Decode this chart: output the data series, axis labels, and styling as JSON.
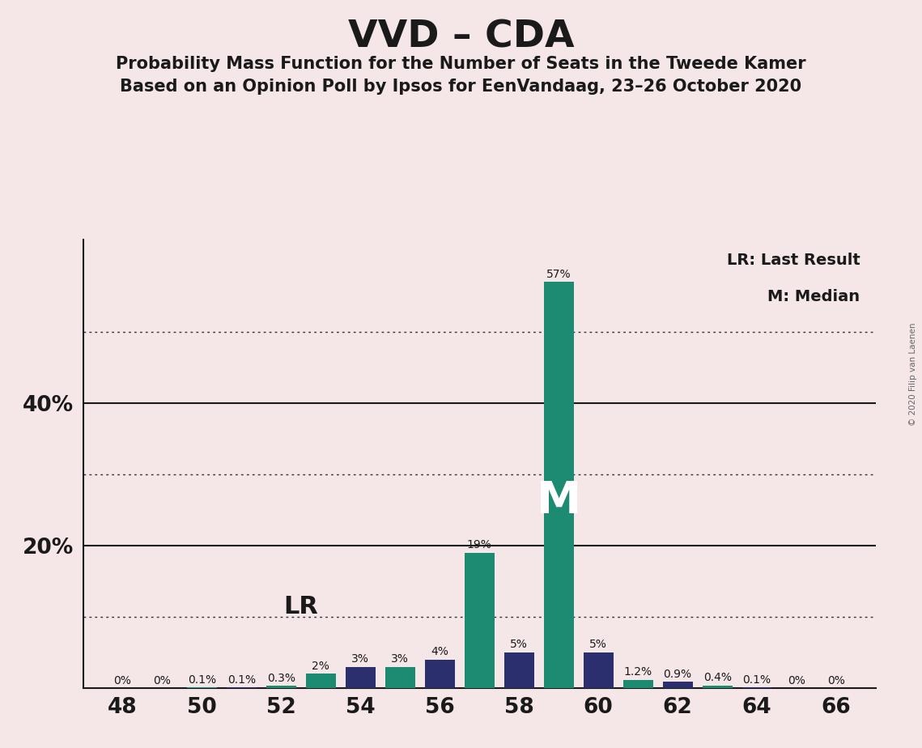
{
  "title": "VVD – CDA",
  "subtitle1": "Probability Mass Function for the Number of Seats in the Tweede Kamer",
  "subtitle2": "Based on an Opinion Poll by Ipsos for EenVandaag, 23–26 October 2020",
  "background_color": "#f5e6e8",
  "seats": [
    48,
    49,
    50,
    51,
    52,
    53,
    54,
    55,
    56,
    57,
    58,
    59,
    60,
    61,
    62,
    63,
    64,
    65,
    66
  ],
  "probabilities": [
    0.0,
    0.0,
    0.001,
    0.001,
    0.003,
    0.02,
    0.03,
    0.03,
    0.04,
    0.19,
    0.05,
    0.57,
    0.05,
    0.012,
    0.009,
    0.004,
    0.001,
    0.0,
    0.0
  ],
  "labels": [
    "0%",
    "0%",
    "0.1%",
    "0.1%",
    "0.3%",
    "2%",
    "3%",
    "3%",
    "4%",
    "19%",
    "5%",
    "57%",
    "5%",
    "1.2%",
    "0.9%",
    "0.4%",
    "0.1%",
    "0%",
    "0%"
  ],
  "colors": [
    "#1d8a72",
    "#2b2f6e",
    "#1d8a72",
    "#2b2f6e",
    "#1d8a72",
    "#1d8a72",
    "#2b2f6e",
    "#1d8a72",
    "#2b2f6e",
    "#1d8a72",
    "#2b2f6e",
    "#1d8a72",
    "#2b2f6e",
    "#1d8a72",
    "#2b2f6e",
    "#1d8a72",
    "#2b2f6e",
    "#1d8a72",
    "#2b2f6e"
  ],
  "lr_seat": 53,
  "median_seat": 59,
  "solid_lines": [
    0.2,
    0.4
  ],
  "dotted_lines": [
    0.1,
    0.3,
    0.5
  ],
  "ytick_values": [
    0.2,
    0.4
  ],
  "ytick_labels": [
    "20%",
    "40%"
  ],
  "ylim": [
    0,
    0.63
  ],
  "xlim": [
    47.0,
    67.0
  ],
  "xticks": [
    48,
    50,
    52,
    54,
    56,
    58,
    60,
    62,
    64,
    66
  ],
  "bar_width": 0.75,
  "copyright": "© 2020 Filip van Laenen"
}
